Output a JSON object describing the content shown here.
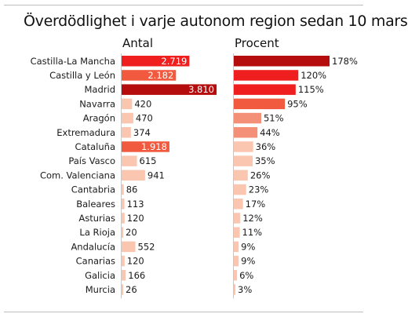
{
  "chart_data": [
    {
      "type": "bar",
      "orientation": "horizontal",
      "title": "Överdödlighet i varje autonom region sedan 10 mars",
      "panel_title": "Antal",
      "categories": [
        "Castilla-La Mancha",
        "Castilla y León",
        "Madrid",
        "Navarra",
        "Aragón",
        "Extremadura",
        "Cataluña",
        "País Vasco",
        "Com. Valenciana",
        "Cantabria",
        "Baleares",
        "Asturias",
        "La Rioja",
        "Andalucía",
        "Canarias",
        "Galicia",
        "Murcia"
      ],
      "values": [
        2719,
        2182,
        3810,
        420,
        470,
        374,
        1918,
        615,
        941,
        86,
        113,
        120,
        20,
        552,
        120,
        166,
        26
      ],
      "labels": [
        "2.719",
        "2.182",
        "3.810",
        "420",
        "470",
        "374",
        "1.918",
        "615",
        "941",
        "86",
        "113",
        "120",
        "20",
        "552",
        "120",
        "166",
        "26"
      ],
      "colors": [
        "#ef1f1f",
        "#f15a3f",
        "#b50d0d",
        "#fbc6b0",
        "#fbc6b0",
        "#fbc6b0",
        "#f15a3f",
        "#fbc6b0",
        "#fbc6b0",
        "#fbc6b0",
        "#fbc6b0",
        "#fbc6b0",
        "#fbc6b0",
        "#fbc6b0",
        "#fbc6b0",
        "#fbc6b0",
        "#fbc6b0"
      ],
      "xlim": [
        0,
        3810
      ]
    },
    {
      "type": "bar",
      "orientation": "horizontal",
      "panel_title": "Procent",
      "categories": [
        "Castilla-La Mancha",
        "Castilla y León",
        "Madrid",
        "Navarra",
        "Aragón",
        "Extremadura",
        "Cataluña",
        "País Vasco",
        "Com. Valenciana",
        "Cantabria",
        "Baleares",
        "Asturias",
        "La Rioja",
        "Andalucía",
        "Canarias",
        "Galicia",
        "Murcia"
      ],
      "values": [
        178,
        120,
        115,
        95,
        51,
        44,
        36,
        35,
        26,
        23,
        17,
        12,
        11,
        9,
        9,
        6,
        3
      ],
      "labels": [
        "178%",
        "120%",
        "115%",
        "95%",
        "51%",
        "44%",
        "36%",
        "35%",
        "26%",
        "23%",
        "17%",
        "12%",
        "11%",
        "9%",
        "9%",
        "6%",
        "3%"
      ],
      "colors": [
        "#b50d0d",
        "#ef1f1f",
        "#ef1f1f",
        "#f15a3f",
        "#f59078",
        "#f59078",
        "#fbc6b0",
        "#fbc6b0",
        "#fbc6b0",
        "#fbc6b0",
        "#fbc6b0",
        "#fbc6b0",
        "#fbc6b0",
        "#fbc6b0",
        "#fbc6b0",
        "#fbc6b0",
        "#fbc6b0"
      ],
      "xlim": [
        0,
        178
      ]
    }
  ]
}
